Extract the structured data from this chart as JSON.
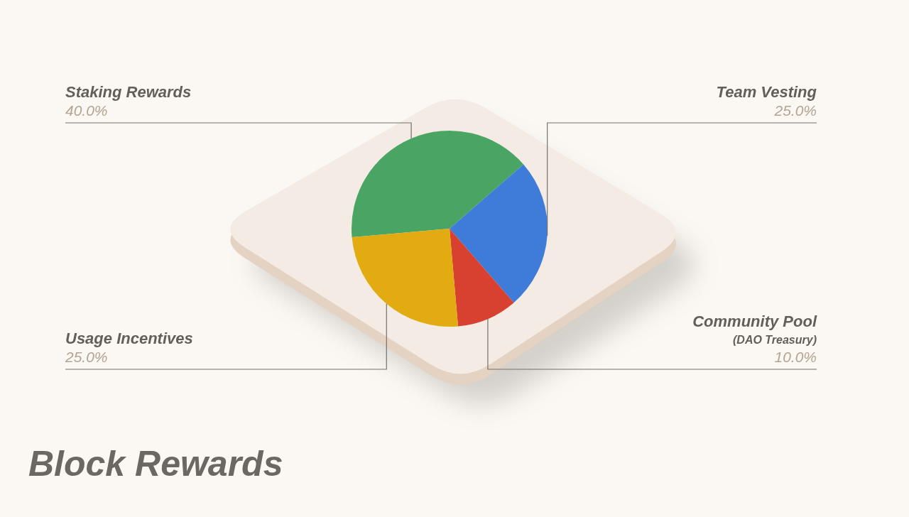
{
  "chart_data": {
    "type": "pie",
    "title": "Block Rewards",
    "categories": [
      "Staking Rewards",
      "Team Vesting",
      "Community Pool\n(DAO Treasury)",
      "Usage Incentives"
    ],
    "values": [
      40,
      25,
      10,
      25
    ],
    "colors": [
      "#4aa564",
      "#3f7bd9",
      "#d8402f",
      "#e2ab12"
    ],
    "value_labels": [
      "40.0%",
      "25.0%",
      "10.0%",
      "25.0%"
    ]
  }
}
